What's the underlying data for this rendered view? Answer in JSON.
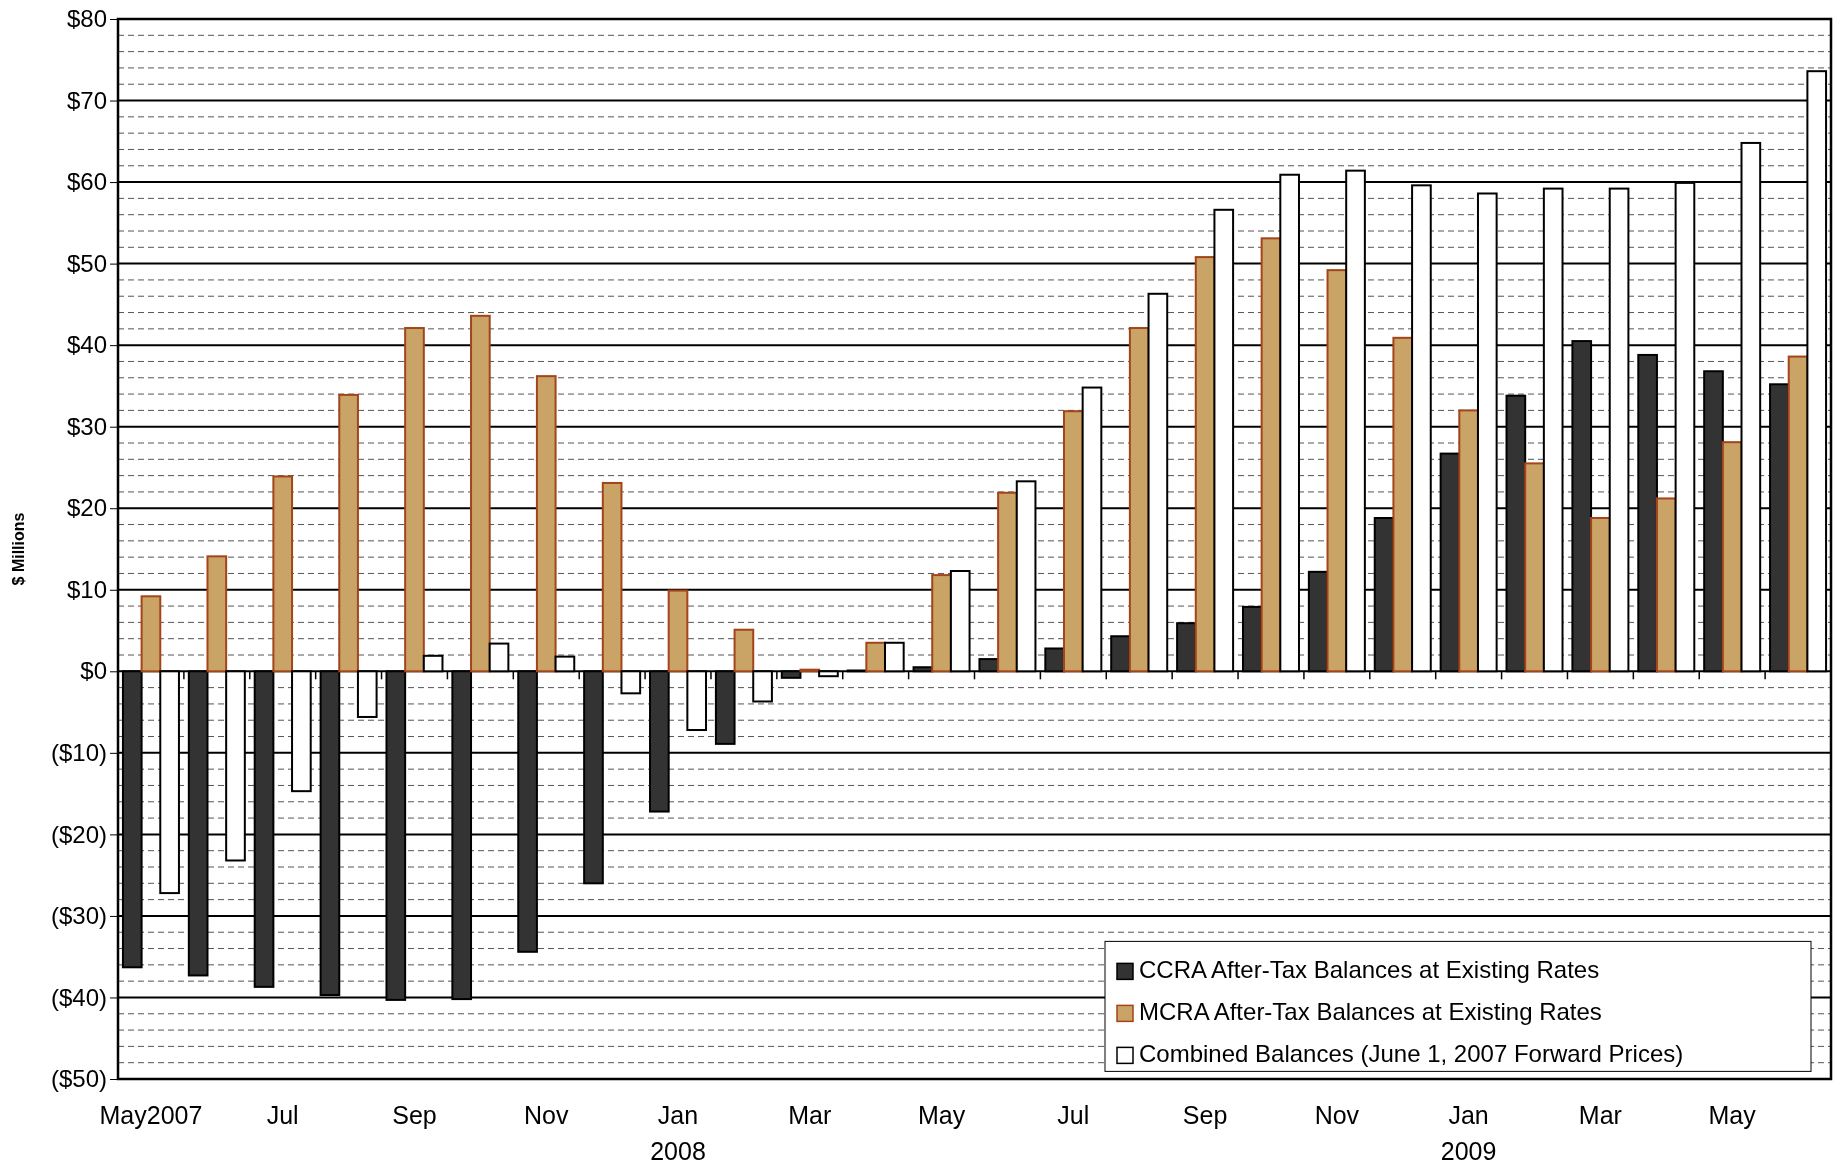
{
  "chart_data": {
    "type": "bar",
    "ylabel": "$ Millions",
    "categories": [
      "May2007",
      null,
      "Jul",
      null,
      "Sep",
      null,
      "Nov",
      null,
      "Jan\n2008",
      null,
      "Mar",
      null,
      "May",
      null,
      "Jul",
      null,
      "Sep",
      null,
      "Nov",
      null,
      "Jan\n2009",
      null,
      "Mar",
      null,
      "May",
      null
    ],
    "series": [
      {
        "name": "CCRA After-Tax Balances at Existing Rates",
        "color": "#333333",
        "values": [
          -36.3,
          -37.3,
          -38.7,
          -39.7,
          -40.3,
          -40.2,
          -34.4,
          -26.0,
          -17.2,
          -8.9,
          -0.8,
          0.1,
          0.5,
          1.5,
          2.8,
          4.3,
          5.9,
          7.9,
          12.2,
          18.8,
          26.7,
          33.8,
          40.5,
          38.8,
          36.8,
          35.2
        ]
      },
      {
        "name": "MCRA After-Tax Balances at Existing Rates",
        "color": "#c9a466",
        "values": [
          9.2,
          14.1,
          23.9,
          33.9,
          42.1,
          43.6,
          36.2,
          23.1,
          9.9,
          5.1,
          0.2,
          3.5,
          11.8,
          21.9,
          31.9,
          42.1,
          50.8,
          53.1,
          49.2,
          40.9,
          32.0,
          25.5,
          18.8,
          21.2,
          28.1,
          38.6
        ]
      },
      {
        "name": "Combined Balances (June 1, 2007 Forward Prices)",
        "color": "#ffffff",
        "values": [
          -27.2,
          -23.2,
          -14.7,
          -5.6,
          1.9,
          3.4,
          1.8,
          -2.7,
          -7.2,
          -3.7,
          -0.6,
          3.5,
          12.3,
          23.3,
          34.8,
          46.3,
          56.6,
          60.9,
          61.4,
          59.6,
          58.6,
          59.2,
          59.2,
          59.9,
          64.8,
          73.6
        ]
      }
    ],
    "ylim": [
      -50,
      80
    ],
    "yticks": [
      {
        "value": -50,
        "label": "($50)"
      },
      {
        "value": -48,
        "label": null
      },
      {
        "value": -46,
        "label": null
      },
      {
        "value": -44,
        "label": null
      },
      {
        "value": -42,
        "label": null
      },
      {
        "value": -40,
        "label": "($40)"
      },
      {
        "value": -38,
        "label": null
      },
      {
        "value": -36,
        "label": null
      },
      {
        "value": -34,
        "label": null
      },
      {
        "value": -32,
        "label": null
      },
      {
        "value": -30,
        "label": "($30)"
      },
      {
        "value": -28,
        "label": null
      },
      {
        "value": -26,
        "label": null
      },
      {
        "value": -24,
        "label": null
      },
      {
        "value": -22,
        "label": null
      },
      {
        "value": -20,
        "label": "($20)"
      },
      {
        "value": -18,
        "label": null
      },
      {
        "value": -16,
        "label": null
      },
      {
        "value": -14,
        "label": null
      },
      {
        "value": -12,
        "label": null
      },
      {
        "value": -10,
        "label": "($10)"
      },
      {
        "value": -8,
        "label": null
      },
      {
        "value": -6,
        "label": null
      },
      {
        "value": -4,
        "label": null
      },
      {
        "value": -2,
        "label": null
      },
      {
        "value": 0,
        "label": "$0"
      },
      {
        "value": 2,
        "label": null
      },
      {
        "value": 4,
        "label": null
      },
      {
        "value": 6,
        "label": null
      },
      {
        "value": 8,
        "label": null
      },
      {
        "value": 10,
        "label": "$10"
      },
      {
        "value": 12,
        "label": null
      },
      {
        "value": 14,
        "label": null
      },
      {
        "value": 16,
        "label": null
      },
      {
        "value": 18,
        "label": null
      },
      {
        "value": 20,
        "label": "$20"
      },
      {
        "value": 22,
        "label": null
      },
      {
        "value": 24,
        "label": null
      },
      {
        "value": 26,
        "label": null
      },
      {
        "value": 28,
        "label": null
      },
      {
        "value": 30,
        "label": "$30"
      },
      {
        "value": 32,
        "label": null
      },
      {
        "value": 34,
        "label": null
      },
      {
        "value": 36,
        "label": null
      },
      {
        "value": 38,
        "label": null
      },
      {
        "value": 40,
        "label": "$40"
      },
      {
        "value": 42,
        "label": null
      },
      {
        "value": 44,
        "label": null
      },
      {
        "value": 46,
        "label": null
      },
      {
        "value": 48,
        "label": null
      },
      {
        "value": 50,
        "label": "$50"
      },
      {
        "value": 52,
        "label": null
      },
      {
        "value": 54,
        "label": null
      },
      {
        "value": 56,
        "label": null
      },
      {
        "value": 58,
        "label": null
      },
      {
        "value": 60,
        "label": "$60"
      },
      {
        "value": 62,
        "label": null
      },
      {
        "value": 64,
        "label": null
      },
      {
        "value": 66,
        "label": null
      },
      {
        "value": 68,
        "label": null
      },
      {
        "value": 70,
        "label": "$70"
      },
      {
        "value": 72,
        "label": null
      },
      {
        "value": 74,
        "label": null
      },
      {
        "value": 76,
        "label": null
      },
      {
        "value": 78,
        "label": null
      },
      {
        "value": 80,
        "label": "$80"
      }
    ],
    "grid": "y",
    "legend": "bottom right"
  }
}
